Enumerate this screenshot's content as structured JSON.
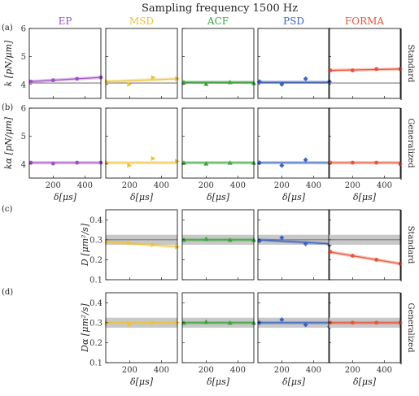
{
  "title": "Sampling frequency 1500 Hz",
  "columns": [
    {
      "label": "EP",
      "color": "#a24fc7"
    },
    {
      "label": "MSD",
      "color": "#ecc33b"
    },
    {
      "label": "ACF",
      "color": "#3aa63a"
    },
    {
      "label": "PSD",
      "color": "#3b63c4"
    },
    {
      "label": "FORMA",
      "color": "#e8553a"
    }
  ],
  "panels": [
    {
      "tag": "(a)",
      "side": "Standard",
      "ylabel": "k [pN/μm]"
    },
    {
      "tag": "(b)",
      "side": "Generalized",
      "ylabel": "kα [pN/μm]"
    },
    {
      "tag": "(c)",
      "side": "Standard",
      "ylabel": "D [μm²/s]"
    },
    {
      "tag": "(d)",
      "side": "Generalized",
      "ylabel": "Dα [μm²/s]"
    }
  ],
  "xlabel": "δ[μs]",
  "chart_data": {
    "type": "scatter",
    "title": "Sampling frequency 1500 Hz",
    "xlabel": "δ[μs]",
    "xlim": [
      50,
      500
    ],
    "xticks": [
      200,
      400
    ],
    "rows": [
      {
        "tag": "(a)",
        "side": "Standard",
        "ylabel": "k [pN/μm]",
        "ylim": [
          3.5,
          6
        ],
        "yticks": [
          4,
          5,
          6
        ],
        "ref": 4.05,
        "band": null,
        "cols": [
          "EP",
          "MSD",
          "ACF",
          "PSD",
          "FORMA"
        ],
        "series": [
          {
            "name": "EP",
            "trend": [
              4.1,
              4.25
            ],
            "x": [
              60,
              200,
              350,
              500
            ],
            "y": [
              4.1,
              4.15,
              4.2,
              4.25
            ]
          },
          {
            "name": "MSD",
            "trend": [
              4.1,
              4.2
            ],
            "x": [
              60,
              200,
              350,
              500
            ],
            "y": [
              4.1,
              4.0,
              4.25,
              4.2
            ]
          },
          {
            "name": "ACF",
            "trend": [
              4.08,
              4.08
            ],
            "x": [
              60,
              200,
              350,
              500
            ],
            "y": [
              4.08,
              4.02,
              4.08,
              4.05
            ]
          },
          {
            "name": "PSD",
            "trend": [
              4.08,
              4.08
            ],
            "x": [
              60,
              200,
              350,
              500
            ],
            "y": [
              4.1,
              4.0,
              4.2,
              4.1
            ]
          },
          {
            "name": "FORMA",
            "trend": [
              4.5,
              4.55
            ],
            "x": [
              60,
              200,
              350,
              500
            ],
            "y": [
              4.5,
              4.5,
              4.55,
              4.55
            ]
          }
        ]
      },
      {
        "tag": "(b)",
        "side": "Generalized",
        "ylabel": "kα [pN/μm]",
        "ylim": [
          3.5,
          6
        ],
        "yticks": [
          4,
          5,
          6
        ],
        "ref": 4.05,
        "band": null,
        "cols": [
          "EP",
          "MSD",
          "ACF",
          "PSD",
          "FORMA"
        ],
        "series": [
          {
            "name": "EP",
            "trend": [
              4.05,
              4.05
            ],
            "x": [
              60,
              200,
              350,
              500
            ],
            "y": [
              4.05,
              4.02,
              4.05,
              4.05
            ]
          },
          {
            "name": "MSD",
            "trend": [
              4.05,
              4.05
            ],
            "x": [
              60,
              200,
              350,
              500
            ],
            "y": [
              4.05,
              3.95,
              4.2,
              4.1
            ]
          },
          {
            "name": "ACF",
            "trend": [
              4.05,
              4.05
            ],
            "x": [
              60,
              200,
              350,
              500
            ],
            "y": [
              4.05,
              4.02,
              4.05,
              4.05
            ]
          },
          {
            "name": "PSD",
            "trend": [
              4.05,
              4.05
            ],
            "x": [
              60,
              200,
              350,
              500
            ],
            "y": [
              4.05,
              3.95,
              4.15,
              4.05
            ]
          },
          {
            "name": "FORMA",
            "trend": [
              4.05,
              4.05
            ],
            "x": [
              60,
              200,
              350,
              500
            ],
            "y": [
              4.05,
              4.05,
              4.05,
              4.0
            ]
          }
        ]
      },
      {
        "tag": "(c)",
        "side": "Standard",
        "ylabel": "D [μm²/s]",
        "ylim": [
          0.1,
          0.45
        ],
        "yticks": [
          0.1,
          0.2,
          0.3,
          0.4
        ],
        "ref": 0.3,
        "band": [
          0.275,
          0.325
        ],
        "cols": [
          "MSD",
          "ACF",
          "PSD",
          "FORMA"
        ],
        "series": [
          {
            "name": "MSD",
            "trend": [
              0.29,
              0.265
            ],
            "x": [
              60,
              200,
              350,
              500
            ],
            "y": [
              0.29,
              0.285,
              0.275,
              0.265
            ]
          },
          {
            "name": "ACF",
            "trend": [
              0.3,
              0.3
            ],
            "x": [
              60,
              200,
              350,
              500
            ],
            "y": [
              0.3,
              0.305,
              0.3,
              0.3
            ]
          },
          {
            "name": "PSD",
            "trend": [
              0.3,
              0.28
            ],
            "x": [
              60,
              200,
              350,
              500
            ],
            "y": [
              0.295,
              0.31,
              0.28,
              0.275
            ]
          },
          {
            "name": "FORMA",
            "trend": [
              0.24,
              0.18
            ],
            "x": [
              60,
              200,
              350,
              500
            ],
            "y": [
              0.24,
              0.22,
              0.2,
              0.18
            ]
          }
        ]
      },
      {
        "tag": "(d)",
        "side": "Generalized",
        "ylabel": "Dα [μm²/s]",
        "ylim": [
          0.1,
          0.45
        ],
        "yticks": [
          0.1,
          0.2,
          0.3,
          0.4
        ],
        "ref": 0.3,
        "band": [
          0.275,
          0.325
        ],
        "cols": [
          "MSD",
          "ACF",
          "PSD",
          "FORMA"
        ],
        "series": [
          {
            "name": "MSD",
            "trend": [
              0.3,
              0.3
            ],
            "x": [
              60,
              200,
              350,
              500
            ],
            "y": [
              0.3,
              0.29,
              0.3,
              0.3
            ]
          },
          {
            "name": "ACF",
            "trend": [
              0.3,
              0.3
            ],
            "x": [
              60,
              200,
              350,
              500
            ],
            "y": [
              0.3,
              0.305,
              0.3,
              0.3
            ]
          },
          {
            "name": "PSD",
            "trend": [
              0.3,
              0.3
            ],
            "x": [
              60,
              200,
              350,
              500
            ],
            "y": [
              0.3,
              0.315,
              0.29,
              0.28
            ]
          },
          {
            "name": "FORMA",
            "trend": [
              0.3,
              0.3
            ],
            "x": [
              60,
              200,
              350,
              500
            ],
            "y": [
              0.3,
              0.3,
              0.3,
              0.3
            ]
          }
        ]
      }
    ]
  }
}
